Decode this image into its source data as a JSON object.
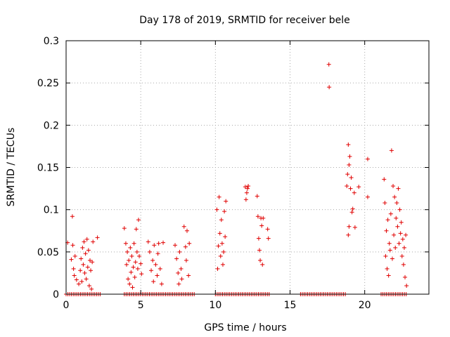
{
  "chart_data": {
    "type": "scatter",
    "title": "Day 178 of 2019, SRMTID for receiver bele",
    "xlabel": "GPS time / hours",
    "ylabel": "SRMTID / TECUs",
    "xlim": [
      0,
      24.3
    ],
    "ylim": [
      0,
      0.3
    ],
    "xticks": [
      0,
      5,
      10,
      15,
      20
    ],
    "yticks": [
      0,
      0.05,
      0.1,
      0.15,
      0.2,
      0.25,
      0.3
    ],
    "xtick_labels": [
      "0",
      "5",
      "10",
      "15",
      "20"
    ],
    "ytick_labels": [
      "0",
      "0.05",
      "0.1",
      "0.15",
      "0.2",
      "0.25",
      "0.3"
    ],
    "grid": true,
    "legend": "none",
    "marker": "+",
    "series_color": "#e00000",
    "series": [
      {
        "name": "SRMTID",
        "points": [
          [
            0.1,
            0.061
          ],
          [
            0.35,
            0.041
          ],
          [
            0.42,
            0.092
          ],
          [
            0.45,
            0.058
          ],
          [
            0.5,
            0.03
          ],
          [
            0.55,
            0.022
          ],
          [
            0.6,
            0.045
          ],
          [
            0.7,
            0.017
          ],
          [
            0.85,
            0.012
          ],
          [
            0.95,
            0.028
          ],
          [
            1.0,
            0.042
          ],
          [
            1.05,
            0.015
          ],
          [
            1.1,
            0.055
          ],
          [
            1.15,
            0.035
          ],
          [
            1.2,
            0.062
          ],
          [
            1.25,
            0.025
          ],
          [
            1.3,
            0.048
          ],
          [
            1.35,
            0.018
          ],
          [
            1.4,
            0.065
          ],
          [
            1.45,
            0.032
          ],
          [
            1.5,
            0.052
          ],
          [
            1.55,
            0.01
          ],
          [
            1.6,
            0.04
          ],
          [
            1.65,
            0.028
          ],
          [
            1.7,
            0.006
          ],
          [
            1.75,
            0.038
          ],
          [
            1.8,
            0.062
          ],
          [
            2.1,
            0.067
          ],
          [
            3.9,
            0.078
          ],
          [
            4.0,
            0.06
          ],
          [
            4.05,
            0.035
          ],
          [
            4.1,
            0.05
          ],
          [
            4.15,
            0.018
          ],
          [
            4.2,
            0.04
          ],
          [
            4.25,
            0.012
          ],
          [
            4.3,
            0.055
          ],
          [
            4.35,
            0.026
          ],
          [
            4.4,
            0.045
          ],
          [
            4.45,
            0.008
          ],
          [
            4.5,
            0.032
          ],
          [
            4.55,
            0.06
          ],
          [
            4.6,
            0.02
          ],
          [
            4.65,
            0.038
          ],
          [
            4.7,
            0.077
          ],
          [
            4.75,
            0.05
          ],
          [
            4.8,
            0.03
          ],
          [
            4.85,
            0.088
          ],
          [
            4.9,
            0.045
          ],
          [
            5.0,
            0.036
          ],
          [
            5.05,
            0.024
          ],
          [
            5.5,
            0.062
          ],
          [
            5.6,
            0.05
          ],
          [
            5.7,
            0.028
          ],
          [
            5.8,
            0.04
          ],
          [
            5.85,
            0.015
          ],
          [
            5.9,
            0.058
          ],
          [
            6.0,
            0.035
          ],
          [
            6.1,
            0.022
          ],
          [
            6.15,
            0.048
          ],
          [
            6.2,
            0.06
          ],
          [
            6.3,
            0.03
          ],
          [
            6.4,
            0.012
          ],
          [
            6.5,
            0.061
          ],
          [
            7.3,
            0.058
          ],
          [
            7.4,
            0.042
          ],
          [
            7.5,
            0.025
          ],
          [
            7.55,
            0.012
          ],
          [
            7.6,
            0.05
          ],
          [
            7.7,
            0.03
          ],
          [
            7.75,
            0.018
          ],
          [
            7.9,
            0.08
          ],
          [
            8.0,
            0.056
          ],
          [
            8.05,
            0.04
          ],
          [
            8.1,
            0.075
          ],
          [
            8.2,
            0.022
          ],
          [
            8.25,
            0.06
          ],
          [
            10.1,
            0.1
          ],
          [
            10.15,
            0.03
          ],
          [
            10.2,
            0.057
          ],
          [
            10.25,
            0.115
          ],
          [
            10.3,
            0.072
          ],
          [
            10.35,
            0.045
          ],
          [
            10.4,
            0.088
          ],
          [
            10.45,
            0.06
          ],
          [
            10.5,
            0.035
          ],
          [
            10.55,
            0.05
          ],
          [
            10.6,
            0.098
          ],
          [
            10.65,
            0.068
          ],
          [
            10.7,
            0.11
          ],
          [
            12.0,
            0.127
          ],
          [
            12.05,
            0.112
          ],
          [
            12.1,
            0.12
          ],
          [
            12.15,
            0.125
          ],
          [
            12.2,
            0.128
          ],
          [
            12.8,
            0.116
          ],
          [
            12.85,
            0.092
          ],
          [
            12.9,
            0.066
          ],
          [
            12.95,
            0.052
          ],
          [
            13.0,
            0.04
          ],
          [
            13.05,
            0.09
          ],
          [
            13.1,
            0.081
          ],
          [
            13.15,
            0.035
          ],
          [
            13.2,
            0.09
          ],
          [
            13.5,
            0.077
          ],
          [
            13.55,
            0.066
          ],
          [
            17.6,
            0.272
          ],
          [
            17.62,
            0.245
          ],
          [
            18.8,
            0.128
          ],
          [
            18.85,
            0.142
          ],
          [
            18.9,
            0.177
          ],
          [
            18.95,
            0.153
          ],
          [
            19.0,
            0.163
          ],
          [
            19.05,
            0.125
          ],
          [
            19.1,
            0.138
          ],
          [
            19.15,
            0.097
          ],
          [
            19.2,
            0.101
          ],
          [
            18.9,
            0.07
          ],
          [
            18.95,
            0.08
          ],
          [
            19.3,
            0.12
          ],
          [
            19.35,
            0.079
          ],
          [
            19.6,
            0.127
          ],
          [
            20.2,
            0.16
          ],
          [
            20.2,
            0.115
          ],
          [
            21.3,
            0.136
          ],
          [
            21.35,
            0.108
          ],
          [
            21.4,
            0.045
          ],
          [
            21.45,
            0.075
          ],
          [
            21.5,
            0.03
          ],
          [
            21.55,
            0.088
          ],
          [
            21.6,
            0.022
          ],
          [
            21.65,
            0.06
          ],
          [
            21.7,
            0.052
          ],
          [
            21.75,
            0.095
          ],
          [
            21.8,
            0.17
          ],
          [
            21.85,
            0.042
          ],
          [
            21.9,
            0.128
          ],
          [
            21.95,
            0.07
          ],
          [
            22.0,
            0.115
          ],
          [
            22.05,
            0.055
          ],
          [
            22.1,
            0.09
          ],
          [
            22.15,
            0.108
          ],
          [
            22.2,
            0.08
          ],
          [
            22.25,
            0.125
          ],
          [
            22.3,
            0.06
          ],
          [
            22.35,
            0.1
          ],
          [
            22.4,
            0.072
          ],
          [
            22.45,
            0.085
          ],
          [
            22.5,
            0.045
          ],
          [
            22.55,
            0.065
          ],
          [
            22.6,
            0.035
          ],
          [
            22.65,
            0.055
          ],
          [
            22.7,
            0.02
          ],
          [
            22.75,
            0.07
          ],
          [
            22.8,
            0.01
          ]
        ],
        "zero_segments": [
          [
            0.0,
            2.3
          ],
          [
            3.9,
            8.6
          ],
          [
            10.0,
            13.6
          ],
          [
            15.7,
            18.8
          ],
          [
            21.1,
            22.8
          ]
        ]
      }
    ]
  }
}
